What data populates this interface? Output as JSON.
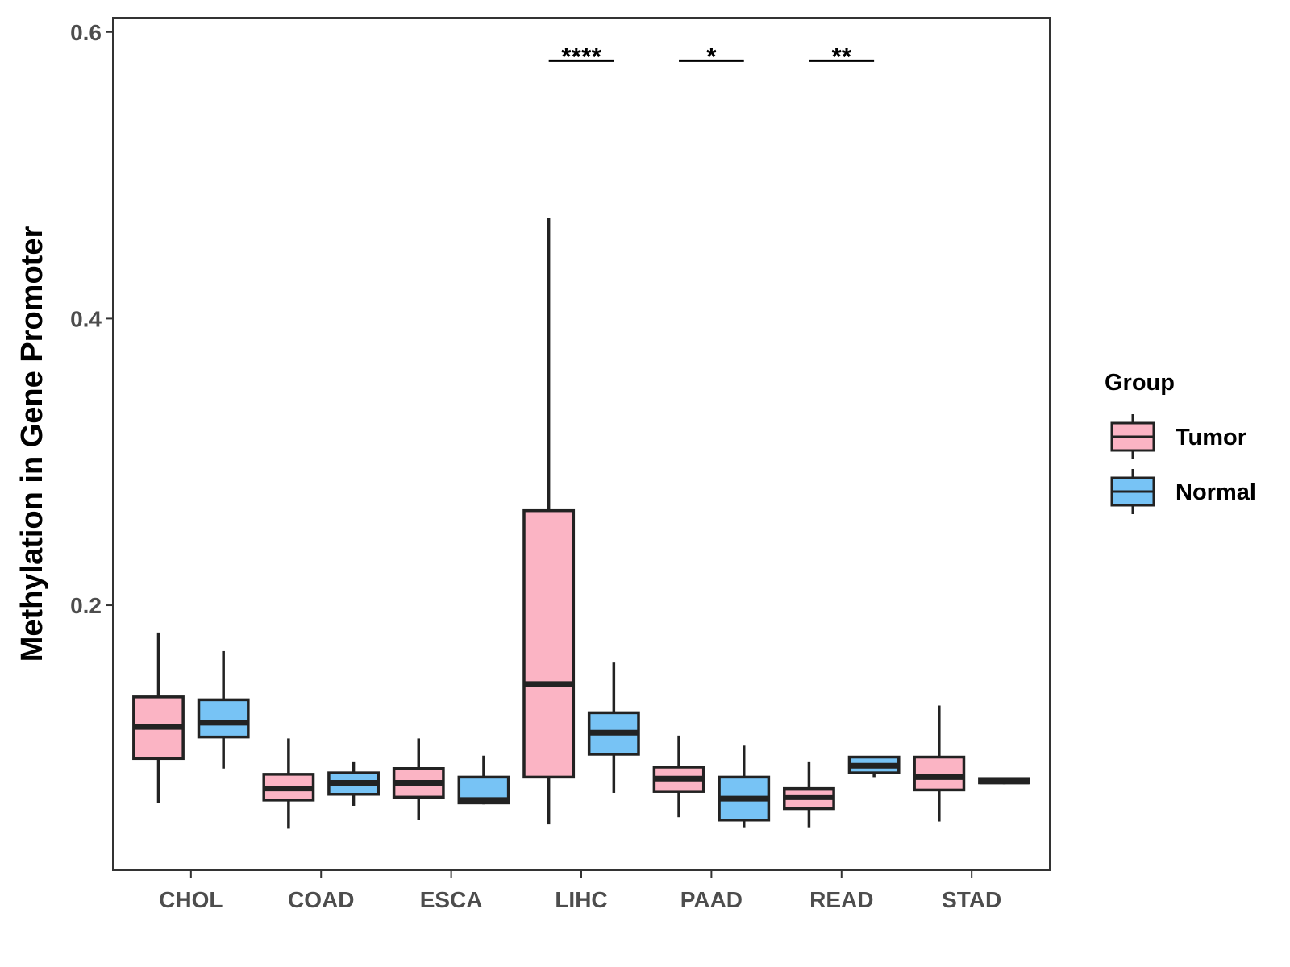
{
  "chart_data": {
    "type": "boxplot",
    "title": "",
    "xlabel": "",
    "ylabel": "Methylation in Gene Promoter",
    "ylim": [
      0.015,
      0.61
    ],
    "yticks": [
      0.2,
      0.4,
      0.6
    ],
    "yticklabels": [
      "0.2",
      "0.4",
      "0.6"
    ],
    "grid": false,
    "legend": {
      "title": "Group",
      "position": "right",
      "entries": [
        {
          "name": "Tumor",
          "color": "#FBB4C4"
        },
        {
          "name": "Normal",
          "color": "#77C3F5"
        }
      ]
    },
    "categories": [
      "CHOL",
      "COAD",
      "ESCA",
      "LIHC",
      "PAAD",
      "READ",
      "STAD"
    ],
    "series": [
      {
        "name": "Tumor",
        "color": "#FBB4C4",
        "boxes": [
          {
            "whisker_low": 0.062,
            "q1": 0.093,
            "median": 0.115,
            "q3": 0.136,
            "whisker_high": 0.181
          },
          {
            "whisker_low": 0.044,
            "q1": 0.064,
            "median": 0.072,
            "q3": 0.082,
            "whisker_high": 0.107
          },
          {
            "whisker_low": 0.05,
            "q1": 0.066,
            "median": 0.076,
            "q3": 0.086,
            "whisker_high": 0.107
          },
          {
            "whisker_low": 0.047,
            "q1": 0.08,
            "median": 0.145,
            "q3": 0.266,
            "whisker_high": 0.47
          },
          {
            "whisker_low": 0.052,
            "q1": 0.07,
            "median": 0.079,
            "q3": 0.087,
            "whisker_high": 0.109
          },
          {
            "whisker_low": 0.045,
            "q1": 0.058,
            "median": 0.066,
            "q3": 0.072,
            "whisker_high": 0.091
          },
          {
            "whisker_low": 0.049,
            "q1": 0.071,
            "median": 0.08,
            "q3": 0.094,
            "whisker_high": 0.13
          }
        ]
      },
      {
        "name": "Normal",
        "color": "#77C3F5",
        "boxes": [
          {
            "whisker_low": 0.086,
            "q1": 0.108,
            "median": 0.118,
            "q3": 0.134,
            "whisker_high": 0.168
          },
          {
            "whisker_low": 0.06,
            "q1": 0.068,
            "median": 0.076,
            "q3": 0.083,
            "whisker_high": 0.091
          },
          {
            "whisker_low": 0.061,
            "q1": 0.062,
            "median": 0.064,
            "q3": 0.08,
            "whisker_high": 0.095
          },
          {
            "whisker_low": 0.069,
            "q1": 0.096,
            "median": 0.111,
            "q3": 0.125,
            "whisker_high": 0.16
          },
          {
            "whisker_low": 0.045,
            "q1": 0.05,
            "median": 0.065,
            "q3": 0.08,
            "whisker_high": 0.102
          },
          {
            "whisker_low": 0.08,
            "q1": 0.083,
            "median": 0.088,
            "q3": 0.094,
            "whisker_high": 0.094
          },
          {
            "whisker_low": 0.075,
            "q1": 0.076,
            "median": 0.077,
            "q3": 0.079,
            "whisker_high": 0.079
          }
        ]
      }
    ],
    "annotations": [
      {
        "category": "LIHC",
        "label": "****",
        "y": 0.58
      },
      {
        "category": "PAAD",
        "label": "*",
        "y": 0.58
      },
      {
        "category": "READ",
        "label": "**",
        "y": 0.58
      }
    ]
  }
}
